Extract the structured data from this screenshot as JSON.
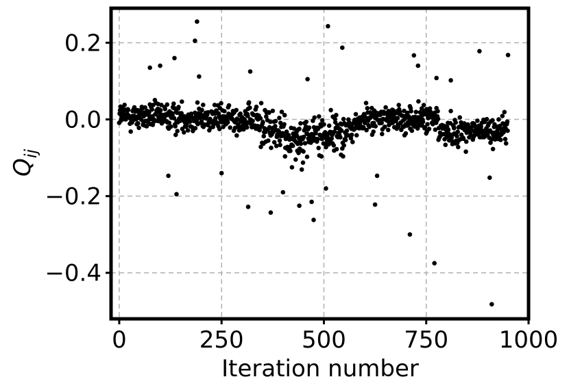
{
  "chart_data": {
    "type": "scatter",
    "xlabel": "Iteration number",
    "ylabel": "Q",
    "ylabel_subscript": "ij",
    "xlim": [
      -20,
      1000
    ],
    "ylim": [
      -0.52,
      0.29
    ],
    "xticks": [
      0,
      250,
      500,
      750,
      1000
    ],
    "xtick_labels": [
      "0",
      "250",
      "500",
      "750",
      "1000"
    ],
    "yticks": [
      0.2,
      0.0,
      -0.2,
      -0.4
    ],
    "ytick_labels": [
      "0.2",
      "0.0",
      "−0.2",
      "−0.4"
    ],
    "grid": true,
    "marker_color": "#000000",
    "n_points": 950,
    "outliers": [
      {
        "x": 75,
        "y": 0.135
      },
      {
        "x": 100,
        "y": 0.14
      },
      {
        "x": 120,
        "y": -0.147
      },
      {
        "x": 135,
        "y": 0.16
      },
      {
        "x": 140,
        "y": -0.195
      },
      {
        "x": 185,
        "y": 0.205
      },
      {
        "x": 190,
        "y": 0.255
      },
      {
        "x": 195,
        "y": 0.112
      },
      {
        "x": 250,
        "y": -0.14
      },
      {
        "x": 315,
        "y": -0.228
      },
      {
        "x": 320,
        "y": 0.125
      },
      {
        "x": 370,
        "y": -0.243
      },
      {
        "x": 400,
        "y": -0.19
      },
      {
        "x": 440,
        "y": -0.225
      },
      {
        "x": 460,
        "y": 0.105
      },
      {
        "x": 470,
        "y": -0.215
      },
      {
        "x": 475,
        "y": -0.262
      },
      {
        "x": 505,
        "y": -0.18
      },
      {
        "x": 510,
        "y": 0.243
      },
      {
        "x": 545,
        "y": 0.187
      },
      {
        "x": 625,
        "y": -0.222
      },
      {
        "x": 630,
        "y": -0.147
      },
      {
        "x": 710,
        "y": -0.3
      },
      {
        "x": 720,
        "y": 0.167
      },
      {
        "x": 730,
        "y": 0.14
      },
      {
        "x": 770,
        "y": -0.375
      },
      {
        "x": 775,
        "y": 0.108
      },
      {
        "x": 810,
        "y": 0.102
      },
      {
        "x": 880,
        "y": 0.178
      },
      {
        "x": 905,
        "y": -0.152
      },
      {
        "x": 910,
        "y": -0.482
      },
      {
        "x": 950,
        "y": 0.168
      }
    ]
  }
}
